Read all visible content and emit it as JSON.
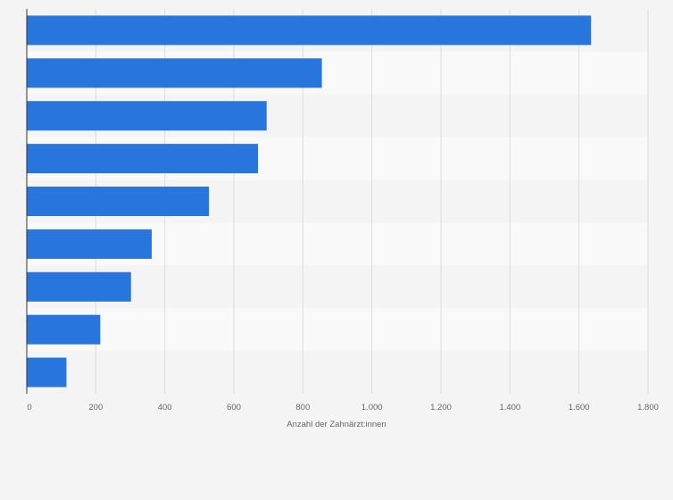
{
  "chart_data": {
    "type": "bar",
    "orientation": "horizontal",
    "categories": [
      "",
      "",
      "",
      "",
      "",
      "",
      "",
      "",
      ""
    ],
    "values": [
      1635,
      855,
      695,
      670,
      528,
      362,
      302,
      213,
      115
    ],
    "title": "",
    "xlabel": "Anzahl der Zahnärzt:innen",
    "ylabel": "",
    "xlim": [
      0,
      1800
    ],
    "xticks": [
      0,
      200,
      400,
      600,
      800,
      1000,
      1200,
      1400,
      1600,
      1800
    ],
    "xtick_labels": [
      "0",
      "200",
      "400",
      "600",
      "800",
      "1.000",
      "1.200",
      "1.400",
      "1.600",
      "1.800"
    ],
    "grid": "vertical",
    "legend": "none",
    "colors": {
      "bar": "#2876dd",
      "band_dark": "#f4f4f4",
      "band_light": "#f9f9f9",
      "grid": "#dddddd",
      "axis": "#333333",
      "page_background": "#f4f4f4"
    }
  }
}
